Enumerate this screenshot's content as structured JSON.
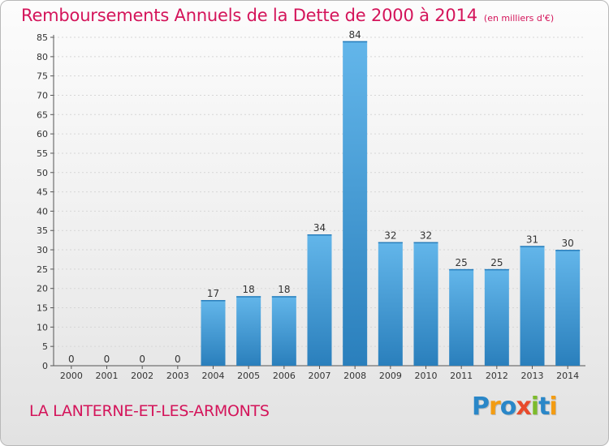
{
  "title": "Remboursements Annuels de la Dette de 2000 à 2014",
  "unit": "(en milliers d'€)",
  "commune": "LA LANTERNE-ET-LES-ARMONTS",
  "logo": {
    "letters": [
      "P",
      "r",
      "o",
      "x",
      "i",
      "t",
      "i"
    ],
    "colors": [
      "#2a87c8",
      "#f39c12",
      "#2a87c8",
      "#e84a2c",
      "#7dbb2c",
      "#2a87c8",
      "#f39c12"
    ]
  },
  "colors": {
    "accent": "#d4145a",
    "bar_light": "#63b6ea",
    "bar_dark": "#2a7fbc"
  },
  "chart_data": {
    "type": "bar",
    "categories": [
      "2000",
      "2001",
      "2002",
      "2003",
      "2004",
      "2005",
      "2006",
      "2007",
      "2008",
      "2009",
      "2010",
      "2011",
      "2012",
      "2013",
      "2014"
    ],
    "values": [
      0,
      0,
      0,
      0,
      17,
      18,
      18,
      34,
      84,
      32,
      32,
      25,
      25,
      31,
      30
    ],
    "yticks": [
      0,
      5,
      10,
      15,
      20,
      25,
      30,
      35,
      40,
      45,
      50,
      55,
      60,
      65,
      70,
      75,
      80,
      85
    ],
    "ylim": [
      0,
      85
    ],
    "grid": true,
    "legend": "none",
    "data_labels": true
  }
}
